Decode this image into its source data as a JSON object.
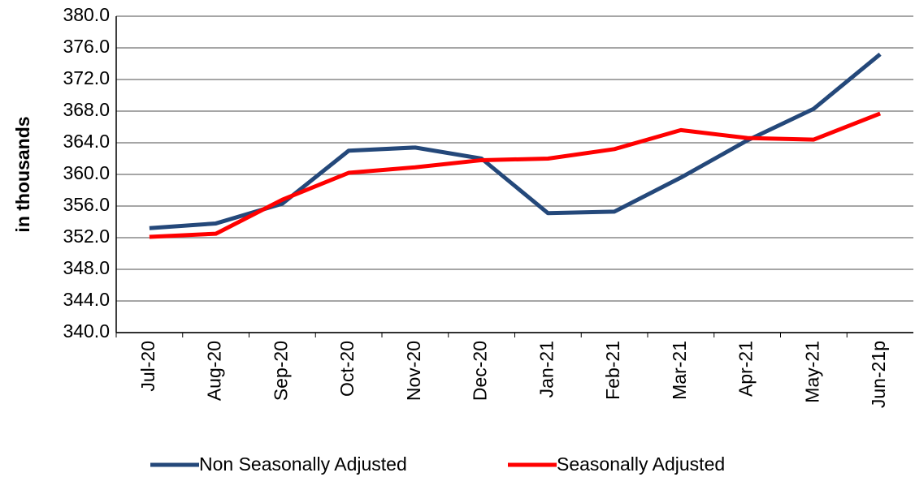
{
  "chart_data": {
    "type": "line",
    "y_label": "in thousands",
    "categories": [
      "Jul-20",
      "Aug-20",
      "Sep-20",
      "Oct-20",
      "Nov-20",
      "Dec-20",
      "Jan-21",
      "Feb-21",
      "Mar-21",
      "Apr-21",
      "May-21",
      "Jun-21p"
    ],
    "series": [
      {
        "name": "Non Seasonally Adjusted",
        "color": "#24487a",
        "values": [
          353.2,
          353.8,
          356.3,
          363.0,
          363.4,
          362.0,
          355.1,
          355.3,
          359.6,
          364.3,
          368.3,
          375.2
        ]
      },
      {
        "name": "Seasonally Adjusted",
        "color": "#ff0000",
        "values": [
          352.1,
          352.5,
          356.8,
          360.2,
          360.9,
          361.8,
          362.0,
          363.2,
          365.6,
          364.6,
          364.4,
          367.7
        ]
      }
    ],
    "ylim": [
      340,
      380
    ],
    "yticks": [
      {
        "value": 340,
        "label": "340.0"
      },
      {
        "value": 344,
        "label": "344.0"
      },
      {
        "value": 348,
        "label": "348.0"
      },
      {
        "value": 352,
        "label": "352.0"
      },
      {
        "value": 356,
        "label": "356.0"
      },
      {
        "value": 360,
        "label": "360.0"
      },
      {
        "value": 364,
        "label": "364.0"
      },
      {
        "value": 368,
        "label": "368.0"
      },
      {
        "value": 372,
        "label": "372.0"
      },
      {
        "value": 376,
        "label": "376.0"
      },
      {
        "value": 380,
        "label": "380.0"
      }
    ],
    "grid": true,
    "legend": "bottom"
  }
}
